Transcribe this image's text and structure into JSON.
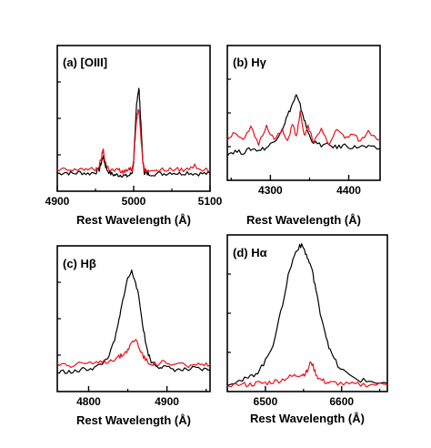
{
  "chart_data": [
    {
      "type": "line",
      "title": "(a) [OIII]",
      "xlabel": "Rest Wavelength (Å)",
      "ylabel": "",
      "xlim": [
        4900,
        5100
      ],
      "ylim": [
        0,
        1
      ],
      "xticks": [
        4900,
        5000,
        5100
      ],
      "grid": false,
      "series": [
        {
          "color": "#000000",
          "x": [
            4900,
            4910,
            4920,
            4930,
            4940,
            4950,
            4955,
            4958,
            4960,
            4962,
            4965,
            4970,
            4975,
            4980,
            4985,
            4990,
            4995,
            4998,
            5000,
            5002,
            5004,
            5006,
            5007,
            5008,
            5010,
            5012,
            5014,
            5016,
            5020,
            5030,
            5040,
            5050,
            5060,
            5070,
            5080,
            5090,
            5100
          ],
          "y": [
            0.09,
            0.1,
            0.09,
            0.1,
            0.09,
            0.1,
            0.12,
            0.18,
            0.22,
            0.17,
            0.12,
            0.09,
            0.08,
            0.08,
            0.08,
            0.07,
            0.08,
            0.1,
            0.18,
            0.4,
            0.62,
            0.7,
            0.72,
            0.62,
            0.4,
            0.18,
            0.1,
            0.09,
            0.09,
            0.09,
            0.09,
            0.1,
            0.09,
            0.1,
            0.09,
            0.09,
            0.09
          ]
        },
        {
          "color": "#e8101a",
          "x": [
            4900,
            4910,
            4920,
            4930,
            4940,
            4950,
            4955,
            4958,
            4960,
            4962,
            4965,
            4970,
            4975,
            4980,
            4985,
            4990,
            4995,
            4998,
            5000,
            5002,
            5004,
            5006,
            5007,
            5008,
            5010,
            5012,
            5014,
            5016,
            5020,
            5030,
            5040,
            5050,
            5060,
            5070,
            5080,
            5090,
            5100
          ],
          "y": [
            0.11,
            0.12,
            0.11,
            0.13,
            0.12,
            0.12,
            0.15,
            0.21,
            0.27,
            0.2,
            0.14,
            0.12,
            0.11,
            0.12,
            0.1,
            0.11,
            0.12,
            0.12,
            0.2,
            0.36,
            0.5,
            0.55,
            0.56,
            0.5,
            0.33,
            0.18,
            0.12,
            0.11,
            0.12,
            0.11,
            0.12,
            0.12,
            0.12,
            0.12,
            0.15,
            0.12,
            0.11
          ]
        }
      ]
    },
    {
      "type": "line",
      "title": "(b) Hγ",
      "xlabel": "Rest Wavelength (Å)",
      "ylabel": "",
      "xlim": [
        4245,
        4440
      ],
      "ylim": [
        0,
        1
      ],
      "xticks": [
        4300,
        4400
      ],
      "grid": false,
      "series": [
        {
          "color": "#000000",
          "x": [
            4245,
            4255,
            4265,
            4275,
            4285,
            4295,
            4305,
            4315,
            4322,
            4328,
            4333,
            4338,
            4343,
            4348,
            4355,
            4365,
            4375,
            4385,
            4395,
            4405,
            4415,
            4425,
            4440
          ],
          "y": [
            0.17,
            0.19,
            0.18,
            0.21,
            0.2,
            0.22,
            0.27,
            0.37,
            0.48,
            0.57,
            0.64,
            0.56,
            0.45,
            0.34,
            0.26,
            0.24,
            0.24,
            0.22,
            0.24,
            0.22,
            0.23,
            0.22,
            0.21
          ]
        },
        {
          "color": "#e8101a",
          "x": [
            4245,
            4255,
            4265,
            4275,
            4285,
            4295,
            4305,
            4315,
            4322,
            4328,
            4333,
            4338,
            4343,
            4348,
            4355,
            4365,
            4375,
            4385,
            4395,
            4405,
            4415,
            4425,
            4440
          ],
          "y": [
            0.29,
            0.35,
            0.27,
            0.38,
            0.25,
            0.4,
            0.28,
            0.36,
            0.26,
            0.42,
            0.3,
            0.5,
            0.31,
            0.39,
            0.27,
            0.36,
            0.24,
            0.38,
            0.29,
            0.33,
            0.27,
            0.35,
            0.28
          ]
        }
      ]
    },
    {
      "type": "line",
      "title": "(c) Hβ",
      "xlabel": "Rest Wavelength (Å)",
      "ylabel": "",
      "xlim": [
        4760,
        4955
      ],
      "ylim": [
        0,
        1
      ],
      "xticks": [
        4800,
        4900
      ],
      "grid": false,
      "series": [
        {
          "color": "#000000",
          "x": [
            4760,
            4770,
            4780,
            4790,
            4800,
            4810,
            4820,
            4828,
            4835,
            4840,
            4845,
            4850,
            4855,
            4860,
            4865,
            4870,
            4875,
            4880,
            4888,
            4895,
            4905,
            4915,
            4925,
            4935,
            4945,
            4955
          ],
          "y": [
            0.1,
            0.11,
            0.1,
            0.12,
            0.13,
            0.14,
            0.18,
            0.25,
            0.38,
            0.52,
            0.68,
            0.8,
            0.85,
            0.78,
            0.62,
            0.42,
            0.26,
            0.18,
            0.15,
            0.14,
            0.13,
            0.12,
            0.12,
            0.13,
            0.12,
            0.12
          ]
        },
        {
          "color": "#e8101a",
          "x": [
            4760,
            4770,
            4780,
            4790,
            4800,
            4810,
            4820,
            4828,
            4835,
            4840,
            4845,
            4850,
            4855,
            4860,
            4865,
            4870,
            4875,
            4880,
            4888,
            4895,
            4905,
            4915,
            4925,
            4935,
            4945,
            4955
          ],
          "y": [
            0.16,
            0.17,
            0.15,
            0.18,
            0.16,
            0.17,
            0.18,
            0.19,
            0.21,
            0.22,
            0.24,
            0.27,
            0.32,
            0.35,
            0.28,
            0.22,
            0.18,
            0.17,
            0.16,
            0.18,
            0.15,
            0.17,
            0.15,
            0.16,
            0.15,
            0.16
          ]
        }
      ]
    },
    {
      "type": "line",
      "title": "(d) Hα",
      "xlabel": "Rest Wavelength (Å)",
      "ylabel": "",
      "xlim": [
        6450,
        6660
      ],
      "ylim": [
        0,
        1
      ],
      "xticks": [
        6500,
        6600
      ],
      "grid": false,
      "series": [
        {
          "color": "#000000",
          "x": [
            6450,
            6470,
            6480,
            6490,
            6500,
            6510,
            6520,
            6530,
            6538,
            6545,
            6550,
            6555,
            6560,
            6565,
            6570,
            6578,
            6585,
            6595,
            6610,
            6625,
            6640,
            6660
          ],
          "y": [
            0.02,
            0.04,
            0.06,
            0.1,
            0.17,
            0.29,
            0.5,
            0.76,
            0.9,
            0.97,
            0.95,
            0.88,
            0.82,
            0.7,
            0.55,
            0.38,
            0.24,
            0.14,
            0.07,
            0.04,
            0.03,
            0.02
          ]
        },
        {
          "color": "#e8101a",
          "x": [
            6450,
            6470,
            6480,
            6490,
            6500,
            6510,
            6520,
            6530,
            6538,
            6545,
            6550,
            6555,
            6560,
            6565,
            6570,
            6578,
            6585,
            6595,
            6610,
            6625,
            6640,
            6660
          ],
          "y": [
            0.01,
            0.01,
            0.01,
            0.02,
            0.02,
            0.03,
            0.04,
            0.06,
            0.07,
            0.08,
            0.08,
            0.1,
            0.17,
            0.1,
            0.05,
            0.03,
            0.02,
            0.02,
            0.01,
            0.01,
            0.01,
            0.01
          ]
        }
      ]
    }
  ]
}
